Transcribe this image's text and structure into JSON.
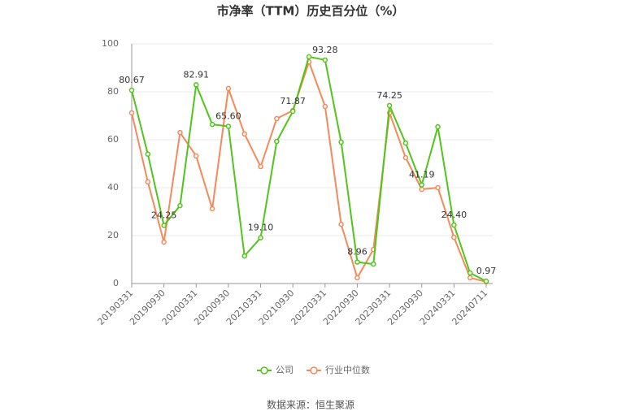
{
  "chart_data": {
    "type": "line",
    "title": "市净率（TTM）历史百分位（%）",
    "categories": [
      "20190331",
      null,
      "20190930",
      null,
      "20200331",
      null,
      "20200930",
      null,
      "20210331",
      null,
      "20210930",
      null,
      "20220331",
      null,
      "20220930",
      null,
      "20230331",
      null,
      "20230930",
      null,
      "20240331",
      null,
      "20240711"
    ],
    "series": [
      {
        "name": "公司",
        "color": "#52c41a",
        "values": [
          80.67,
          54,
          24.25,
          32.5,
          82.91,
          66.4,
          65.6,
          11.5,
          19.1,
          59.3,
          71.87,
          94.6,
          93.28,
          59,
          8.96,
          8.1,
          74.25,
          58.6,
          41.19,
          65.4,
          24.4,
          4.4,
          0.97
        ],
        "value_labels": [
          "80.67",
          null,
          "24.25",
          null,
          "82.91",
          null,
          "65.60",
          null,
          "19.10",
          null,
          "71.87",
          null,
          "93.28",
          null,
          "8.96",
          null,
          "74.25",
          null,
          "41.19",
          null,
          "24.40",
          null,
          "0.97"
        ]
      },
      {
        "name": "行业中位数",
        "color": "#f5895a",
        "values": [
          71.2,
          42.4,
          17.3,
          63,
          53.2,
          31.2,
          81.4,
          62.4,
          48.8,
          68.8,
          72.2,
          92.5,
          73.9,
          24.7,
          2.4,
          14.2,
          71.2,
          52.5,
          39.3,
          40,
          19.3,
          2.4,
          0.7
        ]
      }
    ],
    "ylim": [
      0,
      100
    ],
    "yticks": [
      0,
      20,
      40,
      60,
      80,
      100
    ],
    "grid": true,
    "source": "数据来源：恒生聚源"
  }
}
